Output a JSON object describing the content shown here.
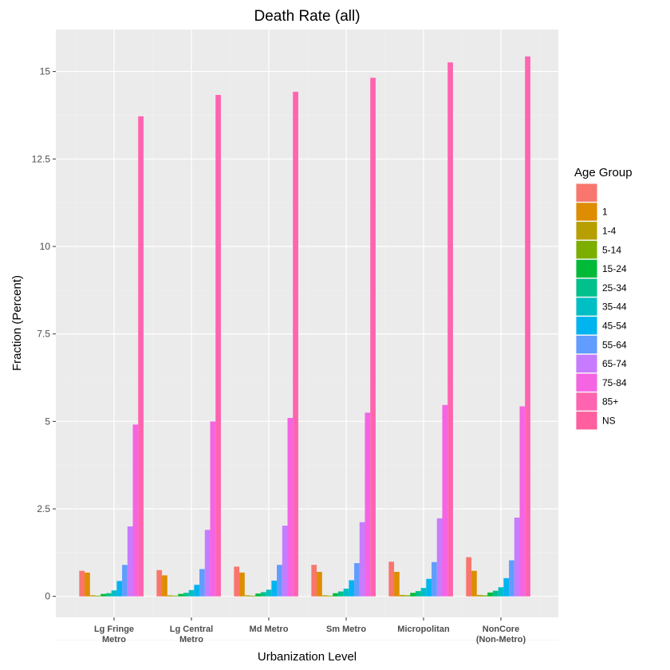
{
  "chart_data": {
    "type": "bar",
    "title": "Death Rate (all)",
    "xlabel": "Urbanization Level",
    "ylabel": "Fraction (Percent)",
    "ylim": [
      -0.6,
      16.2
    ],
    "yticks": [
      "0",
      "2.5",
      "5",
      "7.5",
      "10",
      "12.5",
      "15"
    ],
    "grid": true,
    "legend_position": "right",
    "legend_title": "Age Group",
    "categories": [
      [
        "Lg Fringe",
        "Metro"
      ],
      [
        "Lg Central",
        "Metro"
      ],
      [
        "Md Metro"
      ],
      [
        "Sm Metro"
      ],
      [
        "Micropolitan"
      ],
      [
        "NonCore",
        "(Non-Metro)"
      ]
    ],
    "series": [
      {
        "name": "",
        "color": "#F8766D",
        "values": [
          0.73,
          0.75,
          0.85,
          0.9,
          0.99,
          1.12
        ]
      },
      {
        "name": "1",
        "color": "#DE8C00",
        "values": [
          0.68,
          0.6,
          0.68,
          0.7,
          0.7,
          0.73
        ]
      },
      {
        "name": "1-4",
        "color": "#B79F00",
        "values": [
          0.03,
          0.03,
          0.03,
          0.03,
          0.04,
          0.04
        ]
      },
      {
        "name": "5-14",
        "color": "#7CAE00",
        "values": [
          0.02,
          0.02,
          0.02,
          0.02,
          0.03,
          0.03
        ]
      },
      {
        "name": "15-24",
        "color": "#00BA38",
        "values": [
          0.07,
          0.07,
          0.08,
          0.09,
          0.1,
          0.11
        ]
      },
      {
        "name": "25-34",
        "color": "#00C08B",
        "values": [
          0.09,
          0.1,
          0.12,
          0.14,
          0.15,
          0.16
        ]
      },
      {
        "name": "35-44",
        "color": "#00BFC4",
        "values": [
          0.17,
          0.18,
          0.19,
          0.22,
          0.24,
          0.26
        ]
      },
      {
        "name": "45-54",
        "color": "#00B4F0",
        "values": [
          0.44,
          0.33,
          0.45,
          0.46,
          0.5,
          0.52
        ]
      },
      {
        "name": "55-64",
        "color": "#619CFF",
        "values": [
          0.9,
          0.78,
          0.9,
          0.95,
          0.98,
          1.03
        ]
      },
      {
        "name": "65-74",
        "color": "#C77CFF",
        "values": [
          2.0,
          1.9,
          2.02,
          2.12,
          2.23,
          2.25
        ]
      },
      {
        "name": "75-84",
        "color": "#F564E3",
        "values": [
          4.91,
          5.0,
          5.1,
          5.25,
          5.47,
          5.43
        ]
      },
      {
        "name": "85+",
        "color": "#FF64B0",
        "values": [
          13.72,
          14.33,
          14.42,
          14.82,
          15.26,
          15.43
        ]
      },
      {
        "name": "NS",
        "color": "#FF5F9E",
        "values": [
          0,
          0,
          0,
          0,
          0,
          0
        ]
      }
    ]
  }
}
